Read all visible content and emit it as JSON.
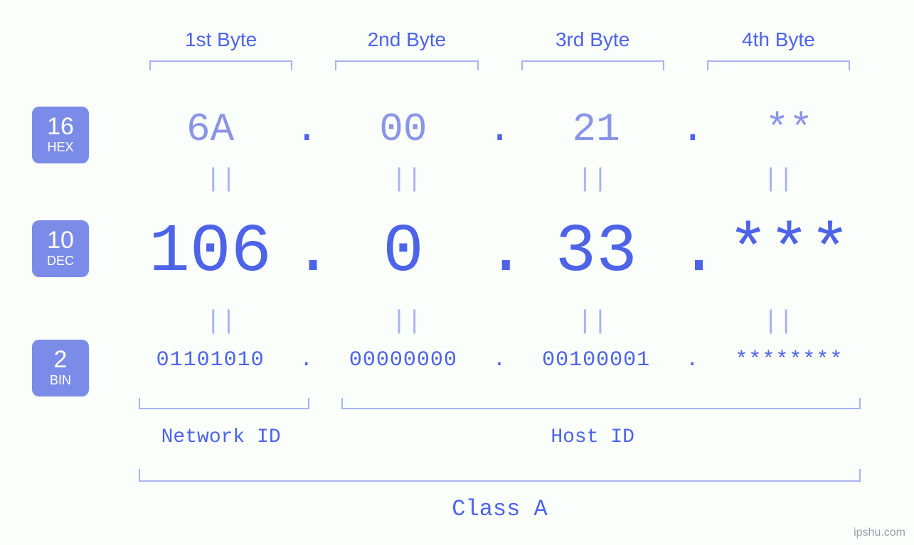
{
  "type": "ip-address-infographic",
  "colors": {
    "background": "#fafffc",
    "primary": "#4d63e8",
    "light": "#8a95e8",
    "bracket": "#a8b3f0",
    "badge_bg": "#7b8ce8",
    "badge_text": "#ffffff",
    "watermark": "#9aa0a6"
  },
  "typography": {
    "font_family_mono": "Courier New, monospace",
    "font_family_sans": "Arial, sans-serif",
    "byte_label_fontsize": 28,
    "hex_fontsize": 56,
    "dec_fontsize": 96,
    "bin_fontsize": 30,
    "eq_fontsize": 36,
    "bottom_label_fontsize": 28,
    "class_label_fontsize": 32,
    "badge_num_fontsize": 34,
    "badge_lbl_fontsize": 18
  },
  "byte_headers": [
    "1st Byte",
    "2nd Byte",
    "3rd Byte",
    "4th Byte"
  ],
  "separator": ".",
  "equals": "||",
  "bases": {
    "hex": {
      "num": "16",
      "label": "HEX",
      "values": [
        "6A",
        "00",
        "21",
        "**"
      ]
    },
    "dec": {
      "num": "10",
      "label": "DEC",
      "values": [
        "106",
        "0",
        "33",
        "***"
      ]
    },
    "bin": {
      "num": "2",
      "label": "BIN",
      "values": [
        "01101010",
        "00000000",
        "00100001",
        "********"
      ]
    }
  },
  "bottom": {
    "network_label": "Network ID",
    "host_label": "Host ID",
    "class_label": "Class A"
  },
  "watermark": "ipshu.com"
}
